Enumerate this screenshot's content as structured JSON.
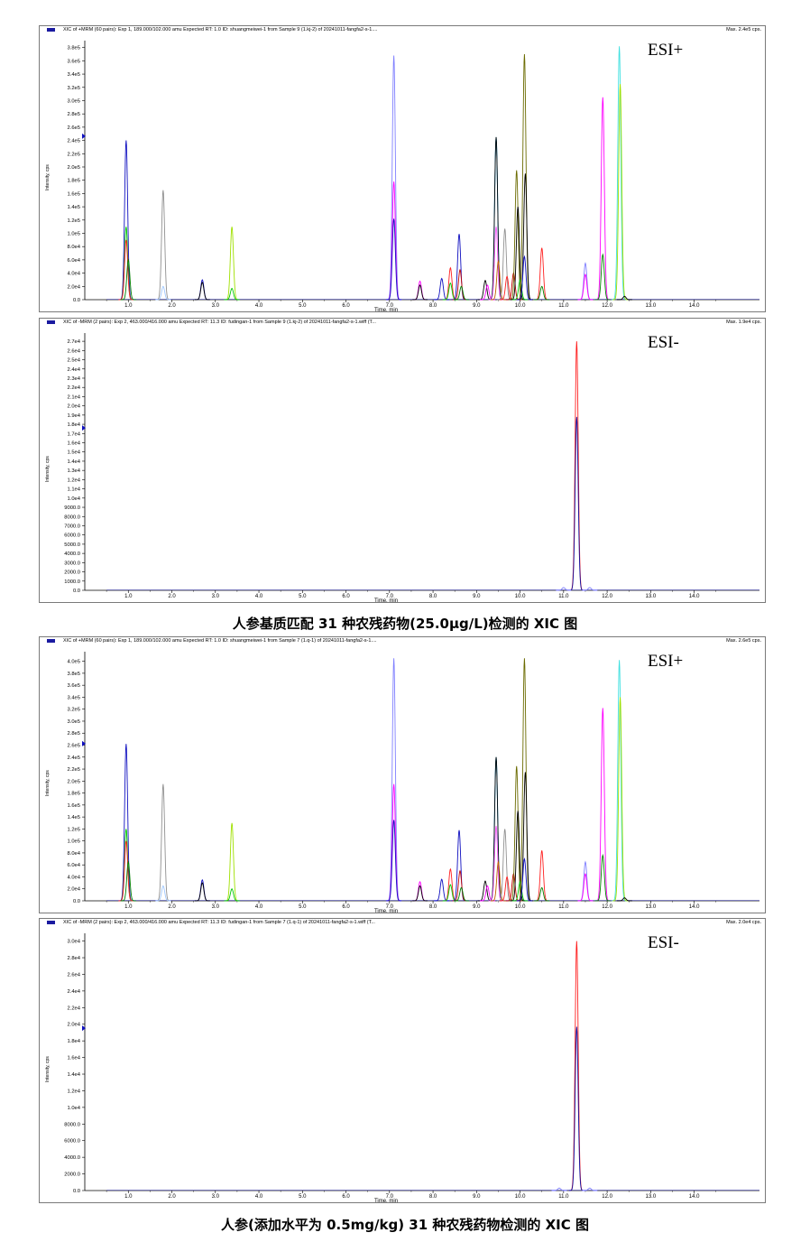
{
  "captions": [
    "人参基质匹配 31 种农残药物(25.0μg/L)检测的 XIC 图",
    "人参(添加水平为 0.5mg/kg) 31 种农残药物检测的 XIC 图"
  ],
  "chart_data": [
    {
      "type": "line",
      "header": "XIC of +MRM (60 pairs): Exp 1, 189.000/102.000 amu Expected RT: 1.0 ID: shuangmeiwei-1 from Sample 9 (1.kj-2) of 20241011-fangfa2-s-1....",
      "max_label": "Max. 2.4e5 cps.",
      "annotation": "ESI+",
      "xlabel": "Time, min",
      "ylabel": "Intensity, cps",
      "xlim": [
        0,
        15.5
      ],
      "ylim": [
        0,
        385000
      ],
      "x_ticks": [
        "1.0",
        "2.0",
        "3.0",
        "4.0",
        "5.0",
        "6.0",
        "7.0",
        "8.0",
        "9.0",
        "10.0",
        "11.0",
        "12.0",
        "13.0",
        "14.0"
      ],
      "y_ticks": [
        "0.0",
        "2.0e4",
        "4.0e4",
        "6.0e4",
        "8.0e4",
        "1.0e5",
        "1.2e5",
        "1.4e5",
        "1.6e5",
        "1.8e5",
        "2.0e5",
        "2.2e5",
        "2.4e5",
        "2.6e5",
        "2.8e5",
        "3.0e5",
        "3.2e5",
        "3.4e5",
        "3.6e5",
        "3.8e5"
      ],
      "series_colors": [
        "#1010c0",
        "#ff00ff",
        "#ff2020",
        "#008000",
        "#00c800",
        "#909090",
        "#a0c8ff",
        "#000000",
        "#c00000",
        "#6b6b00",
        "#a0e000",
        "#40e0e0",
        "#8080ff",
        "#ff60ff",
        "#00b0ff",
        "#c06000"
      ],
      "peaks": [
        {
          "x": 0.95,
          "y": 240000,
          "s": 0
        },
        {
          "x": 0.95,
          "y": 110000,
          "s": 4
        },
        {
          "x": 0.95,
          "y": 90000,
          "s": 2
        },
        {
          "x": 1.0,
          "y": 60000,
          "s": 3
        },
        {
          "x": 1.8,
          "y": 165000,
          "s": 5
        },
        {
          "x": 1.8,
          "y": 20000,
          "s": 6
        },
        {
          "x": 2.7,
          "y": 30000,
          "s": 0
        },
        {
          "x": 2.7,
          "y": 26000,
          "s": 7
        },
        {
          "x": 3.38,
          "y": 110000,
          "s": 10
        },
        {
          "x": 3.38,
          "y": 17000,
          "s": 4
        },
        {
          "x": 7.1,
          "y": 368000,
          "s": 12
        },
        {
          "x": 7.1,
          "y": 178000,
          "s": 1
        },
        {
          "x": 7.1,
          "y": 122000,
          "s": 0
        },
        {
          "x": 7.7,
          "y": 28000,
          "s": 1
        },
        {
          "x": 7.7,
          "y": 22000,
          "s": 7
        },
        {
          "x": 8.2,
          "y": 32000,
          "s": 0
        },
        {
          "x": 8.4,
          "y": 48000,
          "s": 2
        },
        {
          "x": 8.4,
          "y": 25000,
          "s": 4
        },
        {
          "x": 8.6,
          "y": 99000,
          "s": 0
        },
        {
          "x": 8.62,
          "y": 45000,
          "s": 8
        },
        {
          "x": 8.65,
          "y": 20000,
          "s": 3
        },
        {
          "x": 9.2,
          "y": 29000,
          "s": 7
        },
        {
          "x": 9.25,
          "y": 22000,
          "s": 1
        },
        {
          "x": 9.45,
          "y": 245000,
          "s": 14
        },
        {
          "x": 9.45,
          "y": 245000,
          "s": 7
        },
        {
          "x": 9.45,
          "y": 110000,
          "s": 13
        },
        {
          "x": 9.5,
          "y": 58000,
          "s": 15
        },
        {
          "x": 9.65,
          "y": 107000,
          "s": 5
        },
        {
          "x": 9.7,
          "y": 35000,
          "s": 2
        },
        {
          "x": 9.85,
          "y": 40000,
          "s": 8
        },
        {
          "x": 9.92,
          "y": 195000,
          "s": 9
        },
        {
          "x": 9.95,
          "y": 140000,
          "s": 7
        },
        {
          "x": 10.0,
          "y": 30000,
          "s": 4
        },
        {
          "x": 10.1,
          "y": 370000,
          "s": 9
        },
        {
          "x": 10.12,
          "y": 190000,
          "s": 7
        },
        {
          "x": 10.1,
          "y": 65000,
          "s": 0
        },
        {
          "x": 10.5,
          "y": 78000,
          "s": 2
        },
        {
          "x": 10.5,
          "y": 20000,
          "s": 3
        },
        {
          "x": 11.5,
          "y": 55000,
          "s": 12
        },
        {
          "x": 11.5,
          "y": 38000,
          "s": 1
        },
        {
          "x": 11.9,
          "y": 305000,
          "s": 1
        },
        {
          "x": 11.9,
          "y": 68000,
          "s": 3
        },
        {
          "x": 12.28,
          "y": 382000,
          "s": 11
        },
        {
          "x": 12.3,
          "y": 325000,
          "s": 10
        },
        {
          "x": 12.4,
          "y": 5000,
          "s": 7
        }
      ]
    },
    {
      "type": "line",
      "header": "XIC of -MRM (2 pairs): Exp 2, 463.000/416.000 amu Expected RT: 11.3 ID: fudingan-1 from Sample 9 (1.kj-2) of 20241011-fangfa2-s-1.wiff (T...",
      "max_label": "Max. 1.9e4 cps.",
      "annotation": "ESI-",
      "xlabel": "Time, min",
      "ylabel": "Intensity, cps",
      "xlim": [
        0,
        15.5
      ],
      "ylim": [
        0,
        27500
      ],
      "x_ticks": [
        "1.0",
        "2.0",
        "3.0",
        "4.0",
        "5.0",
        "6.0",
        "7.0",
        "8.0",
        "9.0",
        "10.0",
        "11.0",
        "12.0",
        "13.0",
        "14.0"
      ],
      "y_ticks": [
        "0.0",
        "1000.0",
        "2000.0",
        "3000.0",
        "4000.0",
        "5000.0",
        "6000.0",
        "7000.0",
        "8000.0",
        "9000.0",
        "1.0e4",
        "1.1e4",
        "1.2e4",
        "1.3e4",
        "1.4e4",
        "1.5e4",
        "1.6e4",
        "1.7e4",
        "1.8e4",
        "1.9e4",
        "2.0e4",
        "2.1e4",
        "2.2e4",
        "2.3e4",
        "2.4e4",
        "2.5e4",
        "2.6e4",
        "2.7e4"
      ],
      "series_colors": [
        "#ff2020",
        "#1010a0",
        "#8080ff"
      ],
      "peaks": [
        {
          "x": 11.3,
          "y": 27000,
          "s": 0
        },
        {
          "x": 11.3,
          "y": 18800,
          "s": 1
        },
        {
          "x": 11.0,
          "y": 300,
          "s": 2
        },
        {
          "x": 11.6,
          "y": 300,
          "s": 2
        }
      ]
    },
    {
      "type": "line",
      "header": "XIC of +MRM (60 pairs): Exp 1, 189.000/102.000 amu Expected RT: 1.0 ID: shuangmeiwei-1 from Sample 7 (1.q-1) of 20241011-fangfa2-s-1....",
      "max_label": "Max. 2.6e5 cps.",
      "annotation": "ESI+",
      "xlabel": "Time, min",
      "ylabel": "Intensity, cps",
      "xlim": [
        0,
        15.5
      ],
      "ylim": [
        0,
        410000
      ],
      "x_ticks": [
        "1.0",
        "2.0",
        "3.0",
        "4.0",
        "5.0",
        "6.0",
        "7.0",
        "8.0",
        "9.0",
        "10.0",
        "11.0",
        "12.0",
        "13.0",
        "14.0"
      ],
      "y_ticks": [
        "0.0",
        "2.0e4",
        "4.0e4",
        "6.0e4",
        "8.0e4",
        "1.0e5",
        "1.2e5",
        "1.4e5",
        "1.6e5",
        "1.8e5",
        "2.0e5",
        "2.2e5",
        "2.4e5",
        "2.6e5",
        "2.8e5",
        "3.0e5",
        "3.2e5",
        "3.4e5",
        "3.6e5",
        "3.8e5",
        "4.0e5"
      ],
      "series_colors": [
        "#1010c0",
        "#ff00ff",
        "#ff2020",
        "#008000",
        "#00c800",
        "#909090",
        "#a0c8ff",
        "#000000",
        "#c00000",
        "#6b6b00",
        "#a0e000",
        "#40e0e0",
        "#8080ff",
        "#ff60ff",
        "#00b0ff",
        "#c06000"
      ],
      "peaks": [
        {
          "x": 0.95,
          "y": 262000,
          "s": 0
        },
        {
          "x": 0.95,
          "y": 120000,
          "s": 4
        },
        {
          "x": 0.95,
          "y": 100000,
          "s": 2
        },
        {
          "x": 1.0,
          "y": 65000,
          "s": 3
        },
        {
          "x": 1.8,
          "y": 195000,
          "s": 5
        },
        {
          "x": 1.8,
          "y": 25000,
          "s": 6
        },
        {
          "x": 2.7,
          "y": 35000,
          "s": 0
        },
        {
          "x": 2.7,
          "y": 30000,
          "s": 7
        },
        {
          "x": 3.38,
          "y": 130000,
          "s": 10
        },
        {
          "x": 3.38,
          "y": 20000,
          "s": 4
        },
        {
          "x": 7.1,
          "y": 405000,
          "s": 12
        },
        {
          "x": 7.1,
          "y": 195000,
          "s": 1
        },
        {
          "x": 7.1,
          "y": 135000,
          "s": 0
        },
        {
          "x": 7.7,
          "y": 32000,
          "s": 1
        },
        {
          "x": 7.7,
          "y": 25000,
          "s": 7
        },
        {
          "x": 8.2,
          "y": 36000,
          "s": 0
        },
        {
          "x": 8.4,
          "y": 53000,
          "s": 2
        },
        {
          "x": 8.4,
          "y": 27000,
          "s": 4
        },
        {
          "x": 8.6,
          "y": 118000,
          "s": 0
        },
        {
          "x": 8.62,
          "y": 50000,
          "s": 8
        },
        {
          "x": 8.65,
          "y": 22000,
          "s": 3
        },
        {
          "x": 9.2,
          "y": 33000,
          "s": 7
        },
        {
          "x": 9.25,
          "y": 25000,
          "s": 1
        },
        {
          "x": 9.45,
          "y": 240000,
          "s": 14
        },
        {
          "x": 9.45,
          "y": 240000,
          "s": 7
        },
        {
          "x": 9.45,
          "y": 125000,
          "s": 13
        },
        {
          "x": 9.5,
          "y": 65000,
          "s": 15
        },
        {
          "x": 9.65,
          "y": 120000,
          "s": 5
        },
        {
          "x": 9.7,
          "y": 40000,
          "s": 2
        },
        {
          "x": 9.85,
          "y": 45000,
          "s": 8
        },
        {
          "x": 9.92,
          "y": 225000,
          "s": 9
        },
        {
          "x": 9.95,
          "y": 150000,
          "s": 7
        },
        {
          "x": 10.0,
          "y": 32000,
          "s": 4
        },
        {
          "x": 10.1,
          "y": 405000,
          "s": 9
        },
        {
          "x": 10.12,
          "y": 215000,
          "s": 7
        },
        {
          "x": 10.1,
          "y": 70000,
          "s": 0
        },
        {
          "x": 10.5,
          "y": 84000,
          "s": 2
        },
        {
          "x": 10.5,
          "y": 22000,
          "s": 3
        },
        {
          "x": 11.5,
          "y": 65000,
          "s": 12
        },
        {
          "x": 11.5,
          "y": 45000,
          "s": 1
        },
        {
          "x": 11.9,
          "y": 322000,
          "s": 1
        },
        {
          "x": 11.9,
          "y": 76000,
          "s": 3
        },
        {
          "x": 12.28,
          "y": 402000,
          "s": 11
        },
        {
          "x": 12.3,
          "y": 340000,
          "s": 10
        },
        {
          "x": 12.4,
          "y": 5000,
          "s": 7
        }
      ]
    },
    {
      "type": "line",
      "header": "XIC of -MRM (2 pairs): Exp 2, 463.000/416.000 amu Expected RT: 11.3 ID: fudingan-1 from Sample 7 (1.q-1) of 20241011-fangfa2-s-1.wiff (T...",
      "max_label": "Max. 2.0e4 cps.",
      "annotation": "ESI-",
      "xlabel": "Time, min",
      "ylabel": "Intensity, cps",
      "xlim": [
        0,
        15.5
      ],
      "ylim": [
        0,
        30500
      ],
      "x_ticks": [
        "1.0",
        "2.0",
        "3.0",
        "4.0",
        "5.0",
        "6.0",
        "7.0",
        "8.0",
        "9.0",
        "10.0",
        "11.0",
        "12.0",
        "13.0",
        "14.0"
      ],
      "y_ticks": [
        "0.0",
        "2000.0",
        "4000.0",
        "6000.0",
        "8000.0",
        "1.0e4",
        "1.2e4",
        "1.4e4",
        "1.6e4",
        "1.8e4",
        "2.0e4",
        "2.2e4",
        "2.4e4",
        "2.6e4",
        "2.8e4",
        "3.0e4"
      ],
      "series_colors": [
        "#ff2020",
        "#1010a0",
        "#8080ff"
      ],
      "peaks": [
        {
          "x": 11.3,
          "y": 30000,
          "s": 0
        },
        {
          "x": 11.3,
          "y": 19700,
          "s": 1
        },
        {
          "x": 10.9,
          "y": 300,
          "s": 2
        },
        {
          "x": 11.6,
          "y": 300,
          "s": 2
        }
      ]
    }
  ]
}
